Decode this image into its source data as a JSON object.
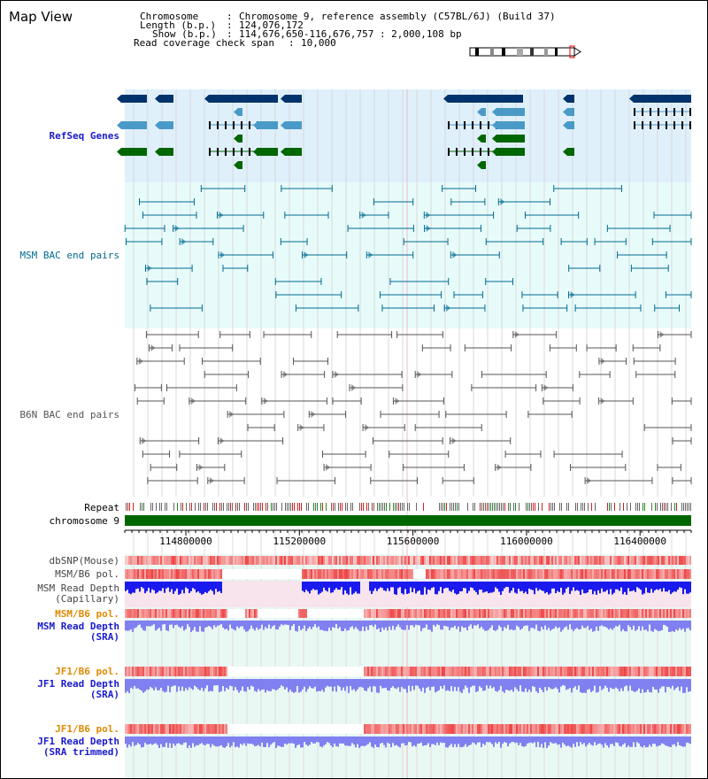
{
  "title": "Map View",
  "header": {
    "chromosome_key": "Chromosome",
    "chromosome_val": "Chromosome 9, reference assembly (C57BL/6J) (Build 37)",
    "length_key": "Length (b.p.)",
    "length_val": "124,076,172",
    "show_key": "Show (b.p.)",
    "show_val": "114,676,650-116,676,757 : 2,000,108 bp",
    "span_key": "Read coverage check span",
    "span_val": "10,000",
    "sep": ":"
  },
  "tracks": {
    "refseq": "RefSeq Genes",
    "msm_bac": "MSM BAC end pairs",
    "b6n_bac": "B6N BAC end pairs",
    "repeat": "Repeat",
    "chromosome": "chromosome 9",
    "dbsnp": "dbSNP(Mouse)",
    "msm_b6_pol_1": "MSM/B6 pol.",
    "msm_read_depth_cap_1": "MSM Read Depth",
    "msm_read_depth_cap_2": "(Capillary)",
    "msm_b6_pol_2": "MSM/B6 pol.",
    "msm_read_depth_sra_1": "MSM Read Depth",
    "msm_read_depth_sra_2": "(SRA)",
    "jf1_b6_pol_1": "JF1/B6 pol.",
    "jf1_read_depth_sra_1": "JF1 Read Depth",
    "jf1_read_depth_sra_2": "(SRA)",
    "jf1_b6_pol_2": "JF1/B6 pol.",
    "jf1_read_depth_trim_1": "JF1 Read Depth",
    "jf1_read_depth_trim_2": "(SRA trimmed)"
  },
  "ruler": {
    "ticks": [
      "114800000",
      "115200000",
      "115600000",
      "116000000",
      "116400000"
    ]
  },
  "colors": {
    "refseq_bg": "#dff0fb",
    "msm_bg": "#e8fbfb",
    "gene_dark": "#00336b",
    "gene_mid": "#4a9ac7",
    "gene_green": "#006600",
    "bac_msm": "#006b8f",
    "bac_b6n": "#555555",
    "chrom": "#006600",
    "depth_blue": "#1a1aee",
    "depth_light": "#8080f0",
    "pol_red": "#ee4444",
    "orange_label": "#e08a00",
    "blue_label": "#1a1acc"
  }
}
